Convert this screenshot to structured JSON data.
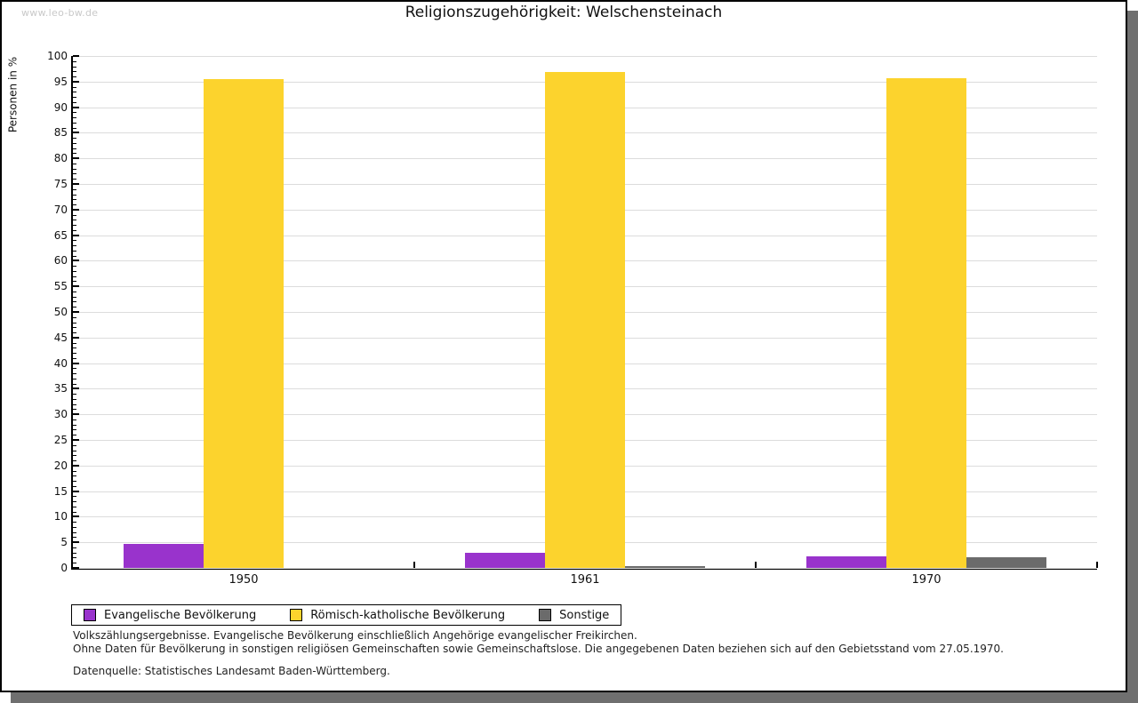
{
  "watermark": "www.leo-bw.de",
  "title": "Religionszugehörigkeit: Welschensteinach",
  "chart_data": {
    "type": "bar",
    "title": "Religionszugehörigkeit: Welschensteinach",
    "xlabel": "",
    "ylabel": "Personen in %",
    "ylim": [
      0,
      100
    ],
    "ytick_major_step": 5,
    "ytick_minor_step": 1,
    "grid": true,
    "legend_position": "bottom-left",
    "categories": [
      "1950",
      "1961",
      "1970"
    ],
    "series": [
      {
        "name": "Evangelische Bevölkerung",
        "color": "#9933CC",
        "values": [
          4.7,
          3.0,
          2.3
        ]
      },
      {
        "name": "Römisch-katholische Bevölkerung",
        "color": "#FCD32D",
        "values": [
          95.4,
          96.8,
          95.7
        ]
      },
      {
        "name": "Sonstige",
        "color": "#6B6B6B",
        "values": [
          0.0,
          0.3,
          2.0
        ]
      }
    ]
  },
  "footer": {
    "line1": "Volkszählungsergebnisse. Evangelische Bevölkerung einschließlich Angehörige evangelischer Freikirchen.",
    "line2": "Ohne Daten für Bevölkerung in sonstigen religiösen Gemeinschaften sowie Gemeinschaftslose. Die angegebenen Daten beziehen sich auf den Gebietsstand vom 27.05.1970.",
    "source": "Datenquelle: Statistisches Landesamt Baden-Württemberg."
  }
}
